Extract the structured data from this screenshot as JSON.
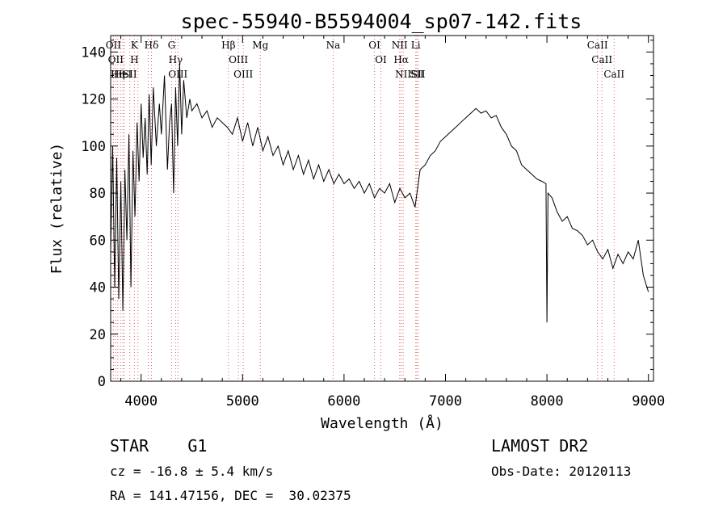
{
  "chart_data": {
    "type": "line",
    "title": "spec-55940-B5594004_sp07-142.fits",
    "xlabel": "Wavelength (Å)",
    "ylabel": "Flux (relative)",
    "xlim": [
      3700,
      9050
    ],
    "ylim": [
      0,
      147
    ],
    "xticks": [
      4000,
      5000,
      6000,
      7000,
      8000,
      9000
    ],
    "yticks": [
      0,
      20,
      40,
      60,
      80,
      100,
      120,
      140
    ],
    "grid": false,
    "series": [
      {
        "x": [
          3700,
          3720,
          3740,
          3760,
          3780,
          3800,
          3820,
          3840,
          3860,
          3880,
          3900,
          3920,
          3940,
          3960,
          3980,
          4000,
          4020,
          4040,
          4060,
          4080,
          4100,
          4120,
          4150,
          4180,
          4200,
          4230,
          4260,
          4280,
          4300,
          4320,
          4340,
          4360,
          4380,
          4400,
          4420,
          4450,
          4480,
          4500,
          4550,
          4600,
          4650,
          4700,
          4750,
          4800,
          4850,
          4900,
          4950,
          5000,
          5050,
          5100,
          5150,
          5200,
          5250,
          5300,
          5350,
          5400,
          5450,
          5500,
          5550,
          5600,
          5650,
          5700,
          5750,
          5800,
          5850,
          5900,
          5950,
          6000,
          6050,
          6100,
          6150,
          6200,
          6250,
          6300,
          6350,
          6400,
          6450,
          6500,
          6550,
          6600,
          6650,
          6700,
          6750,
          6800,
          6850,
          6900,
          6950,
          7000,
          7050,
          7100,
          7150,
          7200,
          7250,
          7300,
          7350,
          7400,
          7450,
          7500,
          7550,
          7600,
          7650,
          7700,
          7750,
          7800,
          7850,
          7900,
          7950,
          7990,
          8000,
          8010,
          8050,
          8100,
          8150,
          8200,
          8250,
          8300,
          8350,
          8400,
          8450,
          8500,
          8550,
          8600,
          8650,
          8700,
          8750,
          8800,
          8850,
          8900,
          8950,
          9000
        ],
        "values": [
          55,
          100,
          40,
          95,
          35,
          85,
          30,
          90,
          60,
          105,
          40,
          98,
          70,
          110,
          85,
          118,
          95,
          112,
          88,
          122,
          92,
          125,
          100,
          118,
          105,
          130,
          90,
          110,
          118,
          80,
          125,
          100,
          135,
          105,
          128,
          112,
          120,
          115,
          118,
          112,
          115,
          108,
          112,
          110,
          108,
          105,
          112,
          102,
          110,
          100,
          108,
          98,
          104,
          96,
          100,
          92,
          98,
          90,
          96,
          88,
          94,
          86,
          92,
          85,
          90,
          84,
          88,
          84,
          86,
          82,
          85,
          80,
          84,
          78,
          82,
          80,
          84,
          76,
          82,
          78,
          80,
          74,
          90,
          92,
          96,
          98,
          102,
          104,
          106,
          108,
          110,
          112,
          114,
          116,
          114,
          115,
          112,
          113,
          108,
          105,
          100,
          98,
          92,
          90,
          88,
          86,
          85,
          84,
          25,
          80,
          78,
          72,
          68,
          70,
          65,
          64,
          62,
          58,
          60,
          55,
          52,
          56,
          48,
          54,
          50,
          55,
          52,
          60,
          45,
          38
        ],
        "color": "#000000"
      }
    ],
    "markers": [
      {
        "w": 3727,
        "labels": [
          "OII"
        ]
      },
      {
        "w": 3750,
        "labels": [
          "OII"
        ]
      },
      {
        "w": 3770,
        "labels": [
          "Hθ",
          "Hη"
        ]
      },
      {
        "w": 3798,
        "labels": []
      },
      {
        "w": 3820,
        "labels": [
          "HeI"
        ]
      },
      {
        "w": 3835,
        "labels": []
      },
      {
        "w": 3889,
        "labels": [
          "SII"
        ]
      },
      {
        "w": 3934,
        "labels": [
          "K",
          "H"
        ]
      },
      {
        "w": 3969,
        "labels": []
      },
      {
        "w": 4070,
        "labels": []
      },
      {
        "w": 4102,
        "labels": [
          "Hδ"
        ]
      },
      {
        "w": 4300,
        "labels": [
          "G"
        ]
      },
      {
        "w": 4340,
        "labels": [
          "Hγ"
        ]
      },
      {
        "w": 4363,
        "labels": [
          "OIII"
        ]
      },
      {
        "w": 4861,
        "labels": [
          "Hβ"
        ]
      },
      {
        "w": 4959,
        "labels": [
          "OIII"
        ]
      },
      {
        "w": 5007,
        "labels": [
          "OIII"
        ]
      },
      {
        "w": 5175,
        "labels": [
          "Mg"
        ]
      },
      {
        "w": 5893,
        "labels": [
          "Na"
        ]
      },
      {
        "w": 6300,
        "labels": [
          "OI"
        ]
      },
      {
        "w": 6363,
        "labels": [
          "OI"
        ]
      },
      {
        "w": 6548,
        "labels": [
          "NII"
        ]
      },
      {
        "w": 6563,
        "labels": [
          "Hα"
        ]
      },
      {
        "w": 6583,
        "labels": [
          "NII"
        ]
      },
      {
        "w": 6707,
        "labels": [
          "Li"
        ]
      },
      {
        "w": 6717,
        "labels": [
          "SII"
        ]
      },
      {
        "w": 6731,
        "labels": [
          "SII"
        ]
      },
      {
        "w": 8498,
        "labels": [
          "CaII"
        ]
      },
      {
        "w": 8542,
        "labels": [
          "CaII"
        ]
      },
      {
        "w": 8662,
        "labels": [
          "CaII"
        ]
      }
    ],
    "marker_color": "#e06060"
  },
  "info": {
    "object_type": "STAR    G1",
    "survey": "LAMOST DR2",
    "redshift": "cz = -16.8 ± 5.4 km/s",
    "obs_date": "Obs-Date: 20120113",
    "coords": "RA = 141.47156, DEC =  30.02375"
  }
}
